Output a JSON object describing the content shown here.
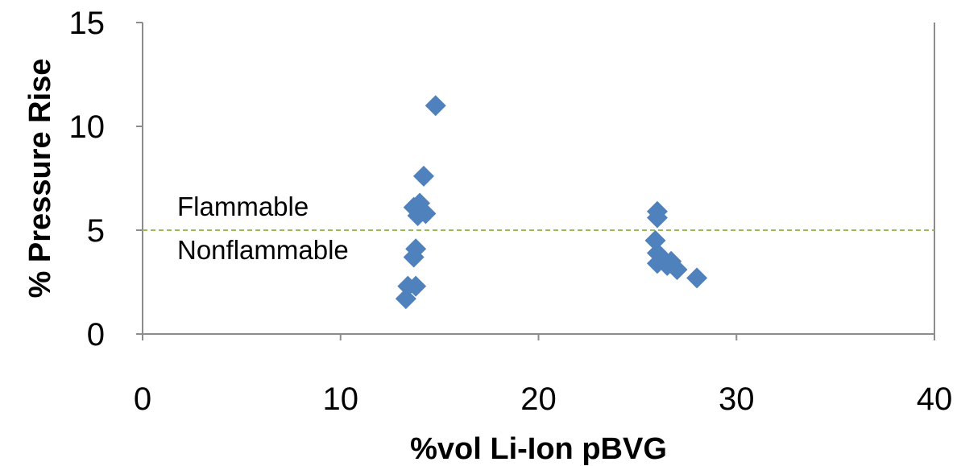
{
  "chart_data": {
    "type": "scatter",
    "title": "",
    "xlabel": "%vol Li-Ion pBVG",
    "ylabel": "% Pressure Rise",
    "xlim": [
      0,
      40
    ],
    "ylim": [
      0,
      15
    ],
    "x_ticks": [
      0,
      10,
      20,
      30,
      40
    ],
    "x_tick_labels": [
      "0",
      "10",
      "20",
      "30",
      "40"
    ],
    "y_ticks": [
      0,
      5,
      10,
      15
    ],
    "y_tick_labels": [
      "0",
      "5",
      "10",
      "15"
    ],
    "grid": false,
    "legend": "none",
    "marker": "diamond",
    "marker_color": "#4F81BD",
    "reference_line": {
      "y": 5,
      "style": "dashed",
      "color": "#9BBB59"
    },
    "annotations": {
      "above": "Flammable",
      "below": "Nonflammable"
    },
    "series": [
      {
        "points": [
          {
            "x": 14.8,
            "y": 11.0
          },
          {
            "x": 14.2,
            "y": 7.6
          },
          {
            "x": 14.0,
            "y": 6.3
          },
          {
            "x": 13.7,
            "y": 6.1
          },
          {
            "x": 14.3,
            "y": 5.8
          },
          {
            "x": 13.9,
            "y": 5.7
          },
          {
            "x": 13.8,
            "y": 4.1
          },
          {
            "x": 13.7,
            "y": 3.7
          },
          {
            "x": 13.8,
            "y": 2.3
          },
          {
            "x": 13.4,
            "y": 2.3
          },
          {
            "x": 13.3,
            "y": 1.7
          },
          {
            "x": 26.0,
            "y": 5.9
          },
          {
            "x": 26.0,
            "y": 5.6
          },
          {
            "x": 25.9,
            "y": 4.5
          },
          {
            "x": 26.0,
            "y": 3.9
          },
          {
            "x": 26.3,
            "y": 3.6
          },
          {
            "x": 26.0,
            "y": 3.4
          },
          {
            "x": 26.7,
            "y": 3.5
          },
          {
            "x": 26.5,
            "y": 3.3
          },
          {
            "x": 27.0,
            "y": 3.1
          },
          {
            "x": 28.0,
            "y": 2.7
          }
        ]
      }
    ]
  }
}
